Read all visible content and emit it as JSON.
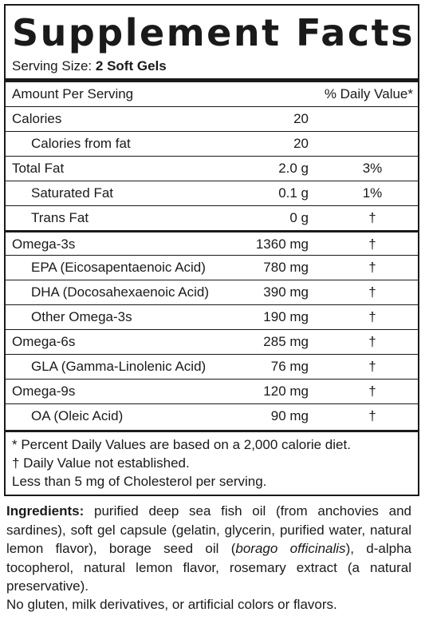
{
  "title": "Supplement Facts",
  "serving": {
    "label": "Serving Size:",
    "value": "2 Soft Gels"
  },
  "header": {
    "amount": "Amount Per Serving",
    "dv": "% Daily Value*"
  },
  "rows": [
    {
      "name": "Calories",
      "amount": "20"
    },
    {
      "name": "Calories from fat",
      "amount": "20"
    },
    {
      "name": "Total Fat",
      "amount": "2.0 g",
      "dv": "3%"
    },
    {
      "name": "Saturated Fat",
      "amount": "0.1 g",
      "dv": "1%"
    },
    {
      "name": "Trans Fat",
      "amount": "0 g",
      "dv": "†"
    },
    {
      "name": "Omega-3s",
      "amount": "1360 mg",
      "dv": "†"
    },
    {
      "name": "EPA (Eicosapentaenoic Acid)",
      "amount": "780 mg",
      "dv": "†"
    },
    {
      "name": "DHA (Docosahexaenoic Acid)",
      "amount": "390 mg",
      "dv": "†"
    },
    {
      "name": "Other Omega-3s",
      "amount": "190 mg",
      "dv": "†"
    },
    {
      "name": "Omega-6s",
      "amount": "285 mg",
      "dv": "†"
    },
    {
      "name": "GLA (Gamma-Linolenic Acid)",
      "amount": "76 mg",
      "dv": "†"
    },
    {
      "name": "Omega-9s",
      "amount": "120 mg",
      "dv": "†"
    },
    {
      "name": "OA (Oleic Acid)",
      "amount": "90 mg",
      "dv": "†"
    }
  ],
  "footnotes": [
    "*  Percent Daily Values are based on a 2,000 calorie diet.",
    "†  Daily Value not established.",
    "Less than 5 mg of Cholesterol per serving."
  ],
  "ingredients": {
    "label": "Ingredients:",
    "text_before": " purified deep sea fish oil (from anchovies and sardines), soft gel capsule (gelatin, glycerin, purified water, natural lemon flavor), borage seed oil (",
    "italic": "borago officinalis",
    "text_after": "), d-alpha tocopherol, natural lemon flavor, rosemary extract (a natural preservative)."
  },
  "note": "No gluten, milk derivatives, or artificial colors or flavors."
}
